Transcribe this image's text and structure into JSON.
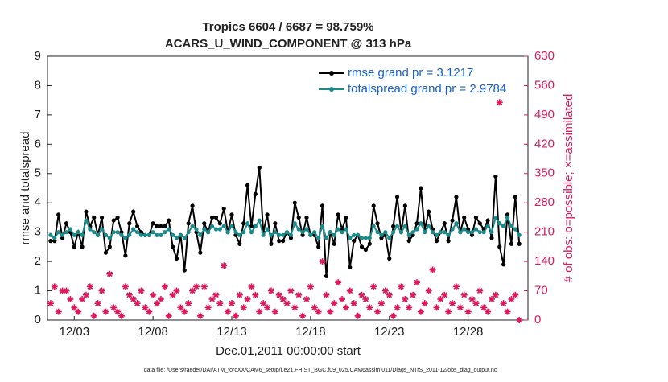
{
  "chart_data": {
    "type": "line",
    "title": "Tropics 6604 / 6687 = 98.759%",
    "subtitle": "ACARS_U_WIND_COMPONENT @ 313 hPa",
    "xlabel": "Dec.01,2011 00:00:00 start",
    "ylabel": "rmse and totalspread",
    "y2label": "# of obs: o=possible; ×=assimilated",
    "footnote": "data file: /Users/raeder/DAI/ATM_forcXX/CAM6_setup/f.e21.FHIST_BGC.f09_025.CAM6assim.011/Diags_NTrS_2011-12/obs_diag_output.nc",
    "legend": "upper right",
    "x": [
      0.5,
      0.75,
      1,
      1.25,
      1.5,
      1.75,
      2,
      2.25,
      2.5,
      2.75,
      3,
      3.25,
      3.5,
      3.75,
      4,
      4.25,
      4.5,
      4.75,
      5,
      5.25,
      5.5,
      5.75,
      6,
      6.25,
      6.5,
      6.75,
      7,
      7.25,
      7.5,
      7.75,
      8,
      8.25,
      8.5,
      8.75,
      9,
      9.25,
      9.5,
      9.75,
      10,
      10.25,
      10.5,
      10.75,
      11,
      11.25,
      11.5,
      11.75,
      12,
      12.25,
      12.5,
      12.75,
      13,
      13.25,
      13.5,
      13.75,
      14,
      14.25,
      14.5,
      14.75,
      15,
      15.25,
      15.5,
      15.75,
      16,
      16.25,
      16.5,
      16.75,
      17,
      17.25,
      17.5,
      17.75,
      18,
      18.25,
      18.5,
      18.75,
      19,
      19.25,
      19.5,
      19.75,
      20,
      20.25,
      20.5,
      20.75,
      21,
      21.25,
      21.5,
      21.75,
      22,
      22.25,
      22.5,
      22.75,
      23,
      23.25,
      23.5,
      23.75,
      24,
      24.25,
      24.5,
      24.75,
      25,
      25.25,
      25.5,
      25.75,
      26,
      26.25,
      26.5,
      26.75,
      27,
      27.25,
      27.5,
      27.75,
      28,
      28.25,
      28.5,
      28.75,
      29,
      29.25,
      29.5,
      29.75,
      30,
      30.25
    ],
    "xlim": [
      0.3,
      30.8
    ],
    "xticks": [
      {
        "value": 2,
        "label": "12/03"
      },
      {
        "value": 7,
        "label": "12/08"
      },
      {
        "value": 12,
        "label": "12/13"
      },
      {
        "value": 17,
        "label": "12/18"
      },
      {
        "value": 22,
        "label": "12/23"
      },
      {
        "value": 27,
        "label": "12/28"
      }
    ],
    "ylim": [
      0,
      9
    ],
    "yticks": [
      0,
      1,
      2,
      3,
      4,
      5,
      6,
      7,
      8,
      9
    ],
    "y2lim": [
      0,
      630
    ],
    "y2ticks": [
      0,
      70,
      140,
      210,
      280,
      350,
      420,
      490,
      560,
      630
    ],
    "series": [
      {
        "name": "rmse grand pr = 3.1217",
        "color": "#000000",
        "values": [
          2.7,
          2.7,
          3.6,
          2.8,
          3.3,
          3.0,
          2.5,
          3.0,
          2.5,
          3.7,
          3.2,
          3.5,
          2.9,
          3.5,
          2.3,
          2.5,
          3.4,
          3.5,
          3.0,
          2.2,
          3.3,
          3.7,
          3.2,
          3.0,
          2.9,
          2.9,
          3.3,
          3.2,
          3.2,
          3.2,
          3.4,
          2.5,
          2.1,
          2.9,
          1.7,
          3.3,
          3.9,
          3.0,
          2.3,
          3.3,
          3.0,
          3.5,
          3.5,
          3.3,
          3.8,
          3.0,
          3.6,
          2.9,
          2.6,
          3.3,
          4.6,
          3.2,
          4.3,
          5.2,
          3.0,
          3.6,
          2.6,
          3.3,
          2.7,
          2.7,
          3.0,
          2.8,
          4.0,
          3.5,
          2.9,
          3.5,
          2.9,
          2.9,
          2.5,
          3.9,
          1.5,
          3.0,
          2.6,
          3.6,
          3.1,
          3.5,
          1.8,
          2.7,
          2.9,
          2.5,
          2.4,
          2.6,
          3.9,
          3.3,
          2.8,
          2.9,
          2.1,
          3.2,
          4.2,
          3.0,
          3.9,
          2.7,
          2.9,
          3.3,
          4.5,
          3.1,
          3.7,
          3.1,
          2.7,
          3.0,
          3.3,
          2.7,
          3.4,
          4.2,
          3.0,
          3.5,
          3.1,
          2.9,
          3.5,
          3.3,
          3.1,
          3.4,
          2.8,
          4.9,
          2.5,
          1.9,
          3.6,
          2.6,
          4.2,
          2.6
        ]
      },
      {
        "name": "totalspread grand pr = 2.9784",
        "color": "#1a8a8a",
        "values": [
          2.9,
          2.8,
          3.0,
          2.9,
          3.0,
          3.1,
          2.9,
          3.0,
          2.9,
          3.4,
          3.1,
          3.0,
          2.9,
          3.1,
          2.9,
          2.8,
          3.0,
          3.0,
          2.9,
          2.8,
          2.9,
          3.1,
          3.0,
          2.9,
          2.9,
          2.9,
          3.0,
          2.9,
          2.9,
          3.0,
          3.1,
          2.9,
          2.8,
          2.9,
          2.8,
          3.0,
          3.2,
          3.1,
          2.9,
          3.1,
          3.0,
          3.2,
          3.1,
          3.1,
          3.2,
          3.0,
          3.2,
          3.0,
          2.9,
          3.0,
          3.3,
          3.0,
          3.2,
          3.4,
          2.9,
          3.1,
          2.9,
          3.0,
          2.9,
          2.9,
          3.0,
          2.9,
          3.3,
          3.1,
          3.0,
          3.1,
          2.9,
          3.0,
          2.8,
          3.2,
          2.8,
          3.0,
          2.9,
          3.1,
          3.0,
          3.1,
          2.8,
          2.9,
          2.9,
          2.8,
          2.8,
          2.8,
          3.2,
          3.0,
          2.9,
          3.0,
          2.8,
          3.0,
          3.2,
          3.0,
          3.2,
          2.9,
          3.0,
          3.1,
          3.3,
          3.0,
          3.2,
          3.0,
          2.9,
          3.0,
          3.0,
          2.9,
          3.1,
          3.3,
          3.0,
          3.1,
          3.0,
          3.0,
          3.1,
          3.0,
          3.0,
          3.2,
          3.0,
          3.5,
          3.3,
          3.2,
          3.5,
          3.2,
          3.1,
          2.9
        ]
      },
      {
        "color": "#d81b5a",
        "axis": "y2",
        "values": [
          40,
          80,
          20,
          70,
          70,
          50,
          30,
          20,
          50,
          60,
          80,
          10,
          40,
          70,
          20,
          110,
          30,
          20,
          10,
          80,
          60,
          50,
          40,
          70,
          30,
          20,
          60,
          40,
          50,
          80,
          10,
          60,
          70,
          30,
          20,
          40,
          70,
          80,
          10,
          80,
          30,
          50,
          60,
          40,
          130,
          20,
          40,
          10,
          60,
          30,
          50,
          80,
          60,
          20,
          40,
          30,
          70,
          20,
          60,
          50,
          40,
          70,
          30,
          60,
          10,
          50,
          80,
          30,
          20,
          140,
          60,
          20,
          40,
          90,
          50,
          30,
          70,
          40,
          10,
          60,
          50,
          30,
          80,
          20,
          40,
          70,
          60,
          10,
          30,
          80,
          50,
          30,
          60,
          90,
          20,
          40,
          70,
          120,
          30,
          50,
          60,
          20,
          40,
          80,
          30,
          60,
          20,
          50,
          40,
          70,
          30,
          20,
          50,
          60,
          520,
          40,
          20,
          50,
          60,
          0
        ]
      }
    ]
  }
}
